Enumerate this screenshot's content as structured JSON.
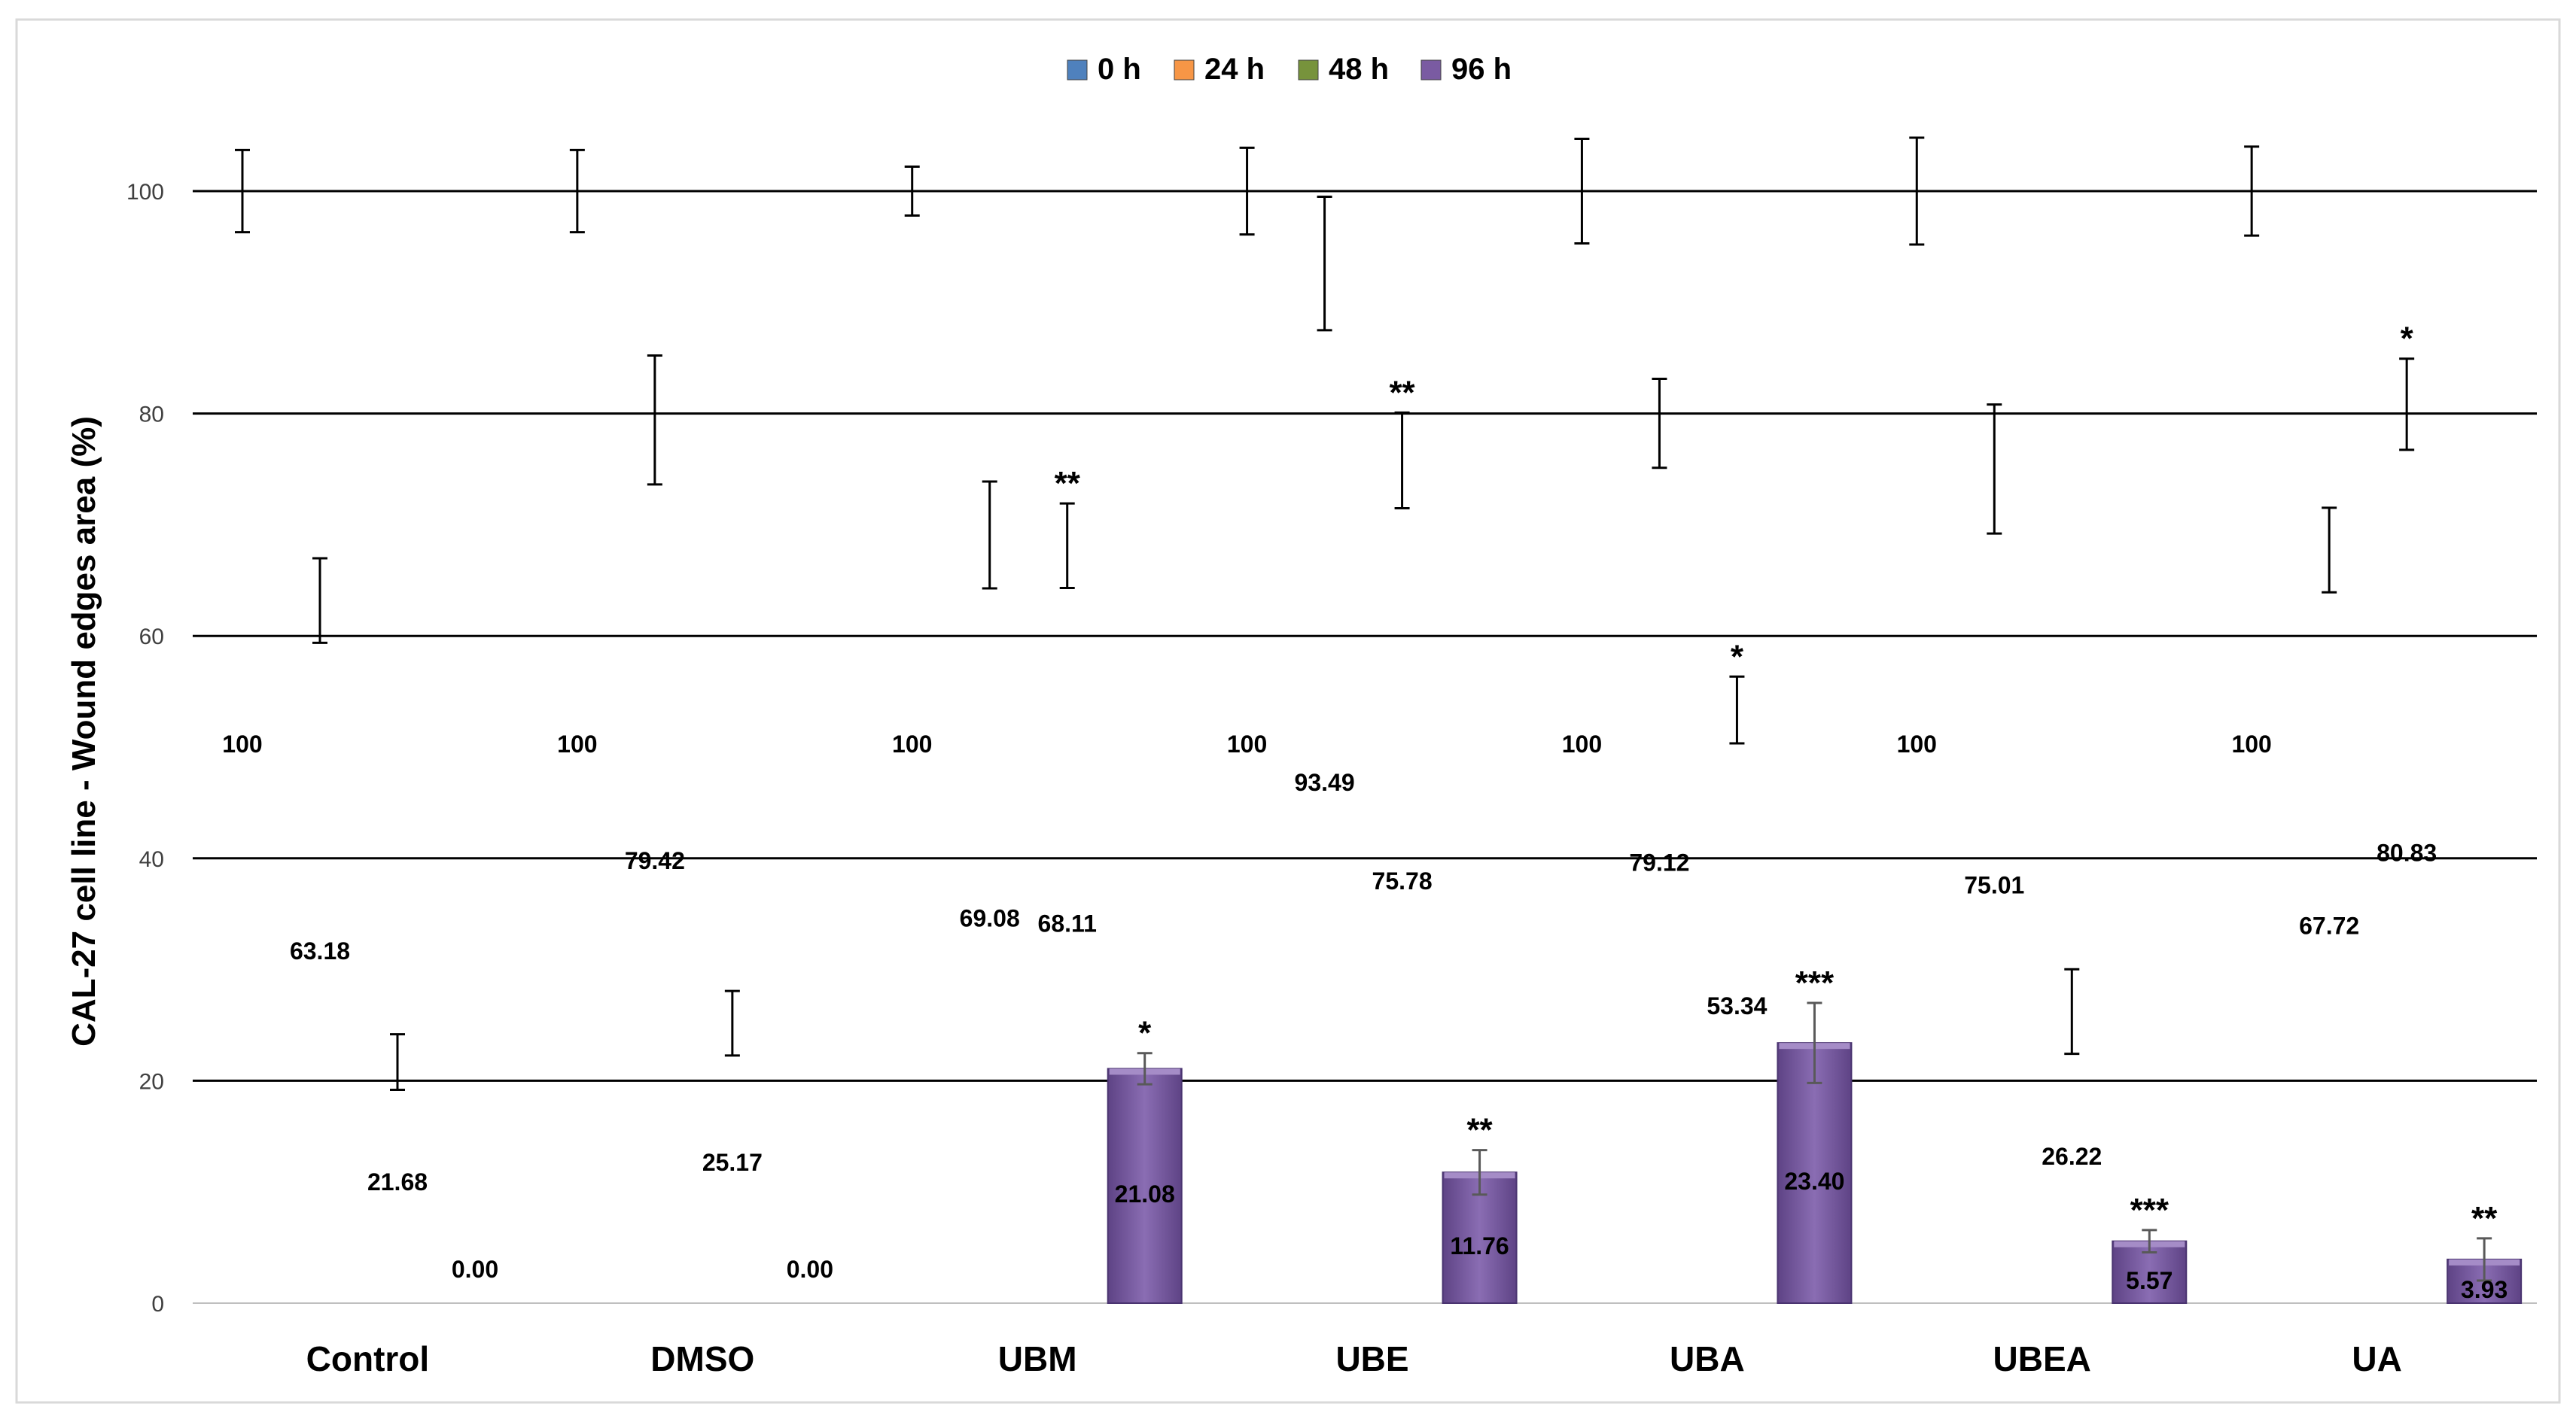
{
  "chart_data": {
    "type": "bar",
    "title": "",
    "xlabel": "",
    "ylabel": "CAL-27 cell line - Wound edges area (%)",
    "ylim": [
      0,
      100
    ],
    "yticks": [
      0,
      20,
      40,
      60,
      80,
      100
    ],
    "ytick_labels": [
      "0",
      "20",
      "40",
      "60",
      "80",
      "100"
    ],
    "grid": true,
    "legend_position": "top-center",
    "categories": [
      "Control",
      "DMSO",
      "UBM",
      "UBE",
      "UBA",
      "UBEA",
      "UA"
    ],
    "series": [
      {
        "name": "0 h",
        "color": "#4f81bd",
        "values": [
          100,
          100,
          100,
          100,
          100,
          100,
          100
        ],
        "labels": [
          "100",
          "100",
          "100",
          "100",
          "100",
          "100",
          "100"
        ],
        "errors": [
          3.7,
          3.7,
          2.2,
          3.9,
          4.7,
          4.8,
          4.0
        ],
        "significance": [
          "",
          "",
          "",
          "",
          "",
          "",
          ""
        ]
      },
      {
        "name": "24 h",
        "color": "#f79646",
        "values": [
          63.18,
          79.42,
          69.08,
          93.49,
          79.12,
          75.01,
          67.72
        ],
        "labels": [
          "63.18",
          "79.42",
          "69.08",
          "93.49",
          "79.12",
          "75.01",
          "67.72"
        ],
        "errors": [
          3.8,
          5.8,
          4.8,
          6.0,
          4.0,
          5.8,
          3.8
        ],
        "significance": [
          "",
          "",
          "",
          "",
          "",
          "",
          ""
        ]
      },
      {
        "name": "48 h",
        "color": "#77933c",
        "values": [
          21.68,
          25.17,
          68.11,
          75.78,
          53.34,
          26.22,
          80.83
        ],
        "labels": [
          "21.68",
          "25.17",
          "68.11",
          "75.78",
          "53.34",
          "26.22",
          "80.83"
        ],
        "errors": [
          2.5,
          2.9,
          3.8,
          4.3,
          3.0,
          3.8,
          4.1
        ],
        "significance": [
          "",
          "",
          "**",
          "**",
          "*",
          "",
          "*"
        ]
      },
      {
        "name": "96 h",
        "color": "#7a5ba2",
        "values": [
          0.0,
          0.0,
          21.08,
          11.76,
          23.4,
          5.57,
          3.93
        ],
        "labels": [
          "0.00",
          "0.00",
          "21.08",
          "11.76",
          "23.40",
          "5.57",
          "3.93"
        ],
        "errors": [
          0,
          0,
          1.4,
          2.0,
          3.6,
          1.0,
          1.9
        ],
        "significance": [
          "",
          "",
          "*",
          "**",
          "***",
          "***",
          "**"
        ]
      }
    ]
  }
}
